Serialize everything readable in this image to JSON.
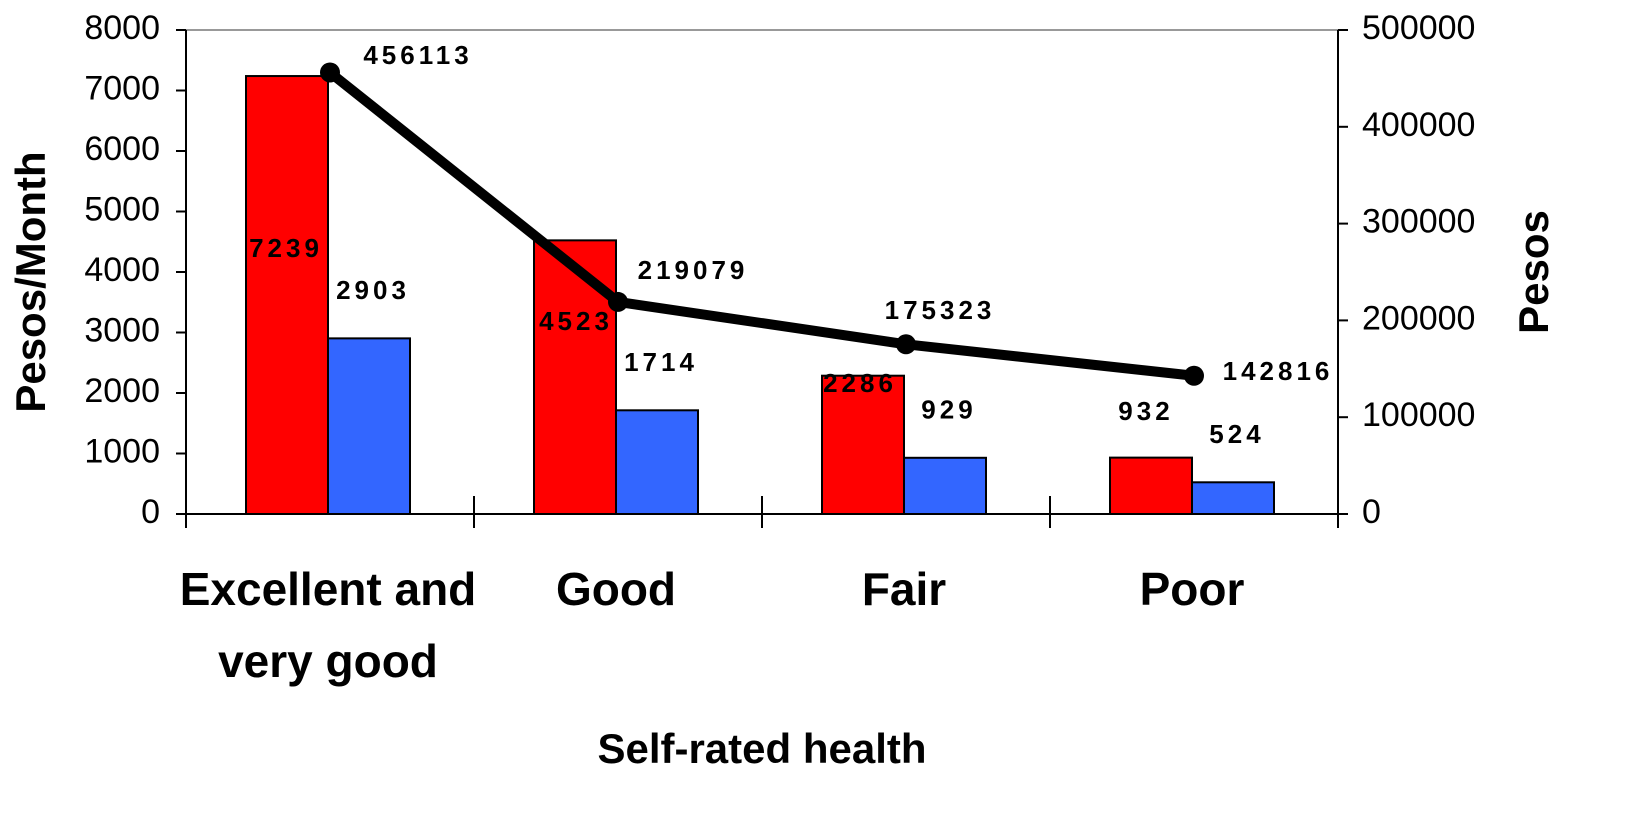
{
  "chart_data": {
    "type": "bar",
    "x_label": "Self-rated health",
    "y_label": "Pesos/Month",
    "y2_label": "Pesos",
    "categories": [
      "Excellent and very good",
      "Good",
      "Fair",
      "Poor"
    ],
    "series": [
      {
        "color": "#ff0000",
        "values": [
          7239,
          4523,
          2286,
          932
        ]
      },
      {
        "color": "#3366ff",
        "values": [
          2903,
          1714,
          929,
          524
        ]
      },
      {
        "type": "line",
        "axis": "y2",
        "color": "#000000",
        "values": [
          456113,
          219079,
          175323,
          142816
        ]
      }
    ],
    "ylim": [
      0,
      8000
    ],
    "yticks": [
      0,
      1000,
      2000,
      3000,
      4000,
      5000,
      6000,
      7000,
      8000
    ],
    "y2lim": [
      0,
      500000
    ],
    "y2ticks": [
      0,
      100000,
      200000,
      300000,
      400000,
      500000
    ]
  }
}
